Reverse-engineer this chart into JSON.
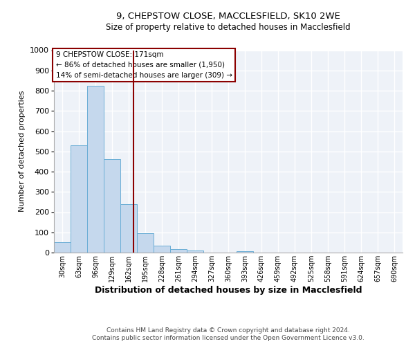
{
  "title1": "9, CHEPSTOW CLOSE, MACCLESFIELD, SK10 2WE",
  "title2": "Size of property relative to detached houses in Macclesfield",
  "xlabel": "Distribution of detached houses by size in Macclesfield",
  "ylabel": "Number of detached properties",
  "bin_labels": [
    "30sqm",
    "63sqm",
    "96sqm",
    "129sqm",
    "162sqm",
    "195sqm",
    "228sqm",
    "261sqm",
    "294sqm",
    "327sqm",
    "360sqm",
    "393sqm",
    "426sqm",
    "459sqm",
    "492sqm",
    "525sqm",
    "558sqm",
    "591sqm",
    "624sqm",
    "657sqm",
    "690sqm"
  ],
  "bar_values": [
    50,
    530,
    825,
    460,
    240,
    95,
    35,
    18,
    10,
    0,
    0,
    8,
    0,
    0,
    0,
    0,
    0,
    0,
    0,
    0,
    0
  ],
  "bar_color": "#c5d8ed",
  "bar_edge_color": "#6baed6",
  "vline_color": "#8b0000",
  "annotation_text": "9 CHEPSTOW CLOSE: 171sqm\n← 86% of detached houses are smaller (1,950)\n14% of semi-detached houses are larger (309) →",
  "annotation_box_color": "#ffffff",
  "annotation_box_edge": "#8b0000",
  "ylim": [
    0,
    1000
  ],
  "yticks": [
    0,
    100,
    200,
    300,
    400,
    500,
    600,
    700,
    800,
    900,
    1000
  ],
  "footer1": "Contains HM Land Registry data © Crown copyright and database right 2024.",
  "footer2": "Contains public sector information licensed under the Open Government Licence v3.0.",
  "bg_color": "#eef2f8",
  "grid_color": "#ffffff"
}
